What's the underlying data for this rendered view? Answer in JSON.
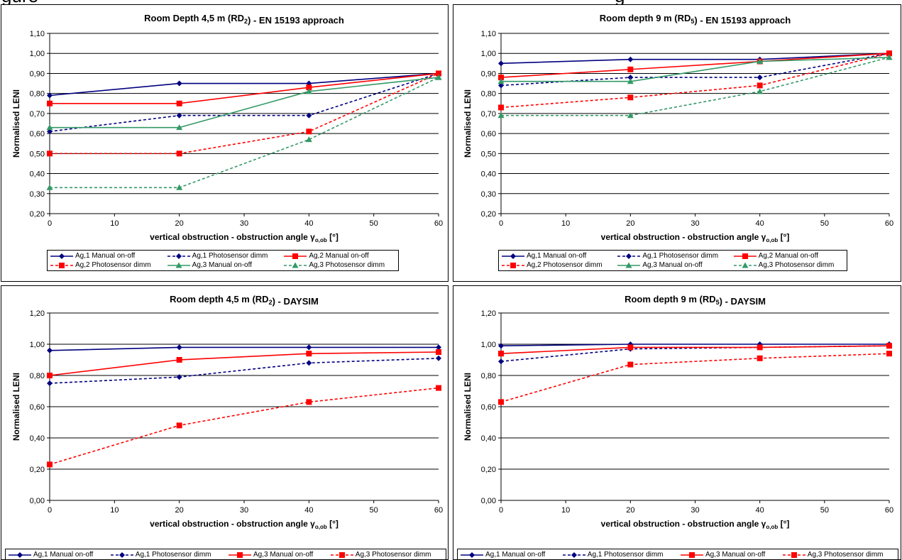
{
  "header_fragment": {
    "left": "gure",
    "right": "g"
  },
  "colors": {
    "navy": "#000080",
    "red": "#ff0000",
    "green": "#339966"
  },
  "chart_data": [
    {
      "type": "line",
      "title": "Room Depth 4,5 m (RD₂) - EN 15193 approach",
      "xlabel": "vertical obstruction - obstruction angle γo,ob [°]",
      "ylabel": "Normalised LENI",
      "x": [
        0,
        20,
        40,
        60
      ],
      "xlim": [
        0,
        60
      ],
      "xticks": [
        0,
        10,
        20,
        30,
        40,
        50,
        60
      ],
      "ylim": [
        0.2,
        1.1
      ],
      "yticks": [
        "0,20",
        "0,30",
        "0,40",
        "0,50",
        "0,60",
        "0,70",
        "0,80",
        "0,90",
        "1,00",
        "1,10"
      ],
      "grid": "horizontal",
      "legend_position": "bottom",
      "series": [
        {
          "name": "Ag,1 Manual on-off",
          "values": [
            0.79,
            0.85,
            0.85,
            0.9
          ],
          "color": "#000080",
          "dash": "solid",
          "marker": "diamond"
        },
        {
          "name": "Ag,1 Photosensor dimm",
          "values": [
            0.61,
            0.69,
            0.69,
            0.9
          ],
          "color": "#000080",
          "dash": "dashed",
          "marker": "diamond"
        },
        {
          "name": "Ag,2 Manual on-off",
          "values": [
            0.75,
            0.75,
            0.83,
            0.9
          ],
          "color": "#ff0000",
          "dash": "solid",
          "marker": "square"
        },
        {
          "name": "Ag,2 Photosensor dimm",
          "values": [
            0.5,
            0.5,
            0.61,
            0.9
          ],
          "color": "#ff0000",
          "dash": "dashed",
          "marker": "square"
        },
        {
          "name": "Ag,3 Manual on-off",
          "values": [
            0.63,
            0.63,
            0.81,
            0.88
          ],
          "color": "#339966",
          "dash": "solid",
          "marker": "triangle"
        },
        {
          "name": "Ag,3 Photosensor dimm",
          "values": [
            0.33,
            0.33,
            0.57,
            0.88
          ],
          "color": "#339966",
          "dash": "dashed",
          "marker": "triangle"
        }
      ]
    },
    {
      "type": "line",
      "title": "Room depth 9 m (RD₅) - EN 15193 approach",
      "xlabel": "vertical obstruction - obstruction angle γo,ob [°]",
      "ylabel": "Normalised LENI",
      "x": [
        0,
        20,
        40,
        60
      ],
      "xlim": [
        0,
        60
      ],
      "xticks": [
        0,
        10,
        20,
        30,
        40,
        50,
        60
      ],
      "ylim": [
        0.2,
        1.1
      ],
      "yticks": [
        "0,20",
        "0,30",
        "0,40",
        "0,50",
        "0,60",
        "0,70",
        "0,80",
        "0,90",
        "1,00",
        "1,10"
      ],
      "grid": "horizontal",
      "legend_position": "bottom",
      "series": [
        {
          "name": "Ag,1 Manual on-off",
          "values": [
            0.95,
            0.97,
            0.97,
            1.0
          ],
          "color": "#000080",
          "dash": "solid",
          "marker": "diamond"
        },
        {
          "name": "Ag,1 Photosensor dimm",
          "values": [
            0.84,
            0.88,
            0.88,
            1.0
          ],
          "color": "#000080",
          "dash": "dashed",
          "marker": "diamond"
        },
        {
          "name": "Ag,2 Manual on-off",
          "values": [
            0.88,
            0.92,
            0.96,
            1.0
          ],
          "color": "#ff0000",
          "dash": "solid",
          "marker": "square"
        },
        {
          "name": "Ag,2 Photosensor dimm",
          "values": [
            0.73,
            0.78,
            0.84,
            1.0
          ],
          "color": "#ff0000",
          "dash": "dashed",
          "marker": "square"
        },
        {
          "name": "Ag,3 Manual on-off",
          "values": [
            0.86,
            0.86,
            0.96,
            0.98
          ],
          "color": "#339966",
          "dash": "solid",
          "marker": "triangle"
        },
        {
          "name": "Ag,3 Photosensor dimm",
          "values": [
            0.69,
            0.69,
            0.81,
            0.98
          ],
          "color": "#339966",
          "dash": "dashed",
          "marker": "triangle"
        }
      ]
    },
    {
      "type": "line",
      "title": "Room depth 4,5 m (RD₂) - DAYSIM",
      "xlabel": "vertical obstruction - obstruction angle γo,ob [°]",
      "ylabel": "Normalised LENI",
      "x": [
        0,
        20,
        40,
        60
      ],
      "xlim": [
        0,
        60
      ],
      "xticks": [
        0,
        10,
        20,
        30,
        40,
        50,
        60
      ],
      "ylim": [
        0.0,
        1.2
      ],
      "yticks": [
        "0,00",
        "0,20",
        "0,40",
        "0,60",
        "0,80",
        "1,00",
        "1,20"
      ],
      "grid": "horizontal",
      "legend_position": "bottom",
      "series": [
        {
          "name": "Ag,1 Manual on-off",
          "values": [
            0.96,
            0.98,
            0.98,
            0.98
          ],
          "color": "#000080",
          "dash": "solid",
          "marker": "diamond"
        },
        {
          "name": "Ag,1 Photosensor dimm",
          "values": [
            0.75,
            0.79,
            0.88,
            0.91
          ],
          "color": "#000080",
          "dash": "dashed",
          "marker": "diamond"
        },
        {
          "name": "Ag,3 Manual on-off",
          "values": [
            0.8,
            0.9,
            0.94,
            0.95
          ],
          "color": "#ff0000",
          "dash": "solid",
          "marker": "square"
        },
        {
          "name": "Ag,3 Photosensor dimm",
          "values": [
            0.23,
            0.48,
            0.63,
            0.72
          ],
          "color": "#ff0000",
          "dash": "dashed",
          "marker": "square"
        }
      ]
    },
    {
      "type": "line",
      "title": "Room depth 9 m (RD₅) - DAYSIM",
      "xlabel": "vertical obstruction - obstruction angle γo,ob [°]",
      "ylabel": "Normalised LENI",
      "x": [
        0,
        20,
        40,
        60
      ],
      "xlim": [
        0,
        60
      ],
      "xticks": [
        0,
        10,
        20,
        30,
        40,
        50,
        60
      ],
      "ylim": [
        0.0,
        1.2
      ],
      "yticks": [
        "0,00",
        "0,20",
        "0,40",
        "0,60",
        "0,80",
        "1,00",
        "1,20"
      ],
      "grid": "horizontal",
      "legend_position": "bottom",
      "series": [
        {
          "name": "Ag,1 Manual on-off",
          "values": [
            0.99,
            1.0,
            1.0,
            1.0
          ],
          "color": "#000080",
          "dash": "solid",
          "marker": "diamond"
        },
        {
          "name": "Ag,1 Photosensor dimm",
          "values": [
            0.89,
            0.97,
            0.98,
            0.99
          ],
          "color": "#000080",
          "dash": "dashed",
          "marker": "diamond"
        },
        {
          "name": "Ag,3 Manual on-off",
          "values": [
            0.94,
            0.98,
            0.98,
            0.99
          ],
          "color": "#ff0000",
          "dash": "solid",
          "marker": "square"
        },
        {
          "name": "Ag,3 Photosensor dimm",
          "values": [
            0.63,
            0.87,
            0.91,
            0.94
          ],
          "color": "#ff0000",
          "dash": "dashed",
          "marker": "square"
        }
      ]
    }
  ]
}
